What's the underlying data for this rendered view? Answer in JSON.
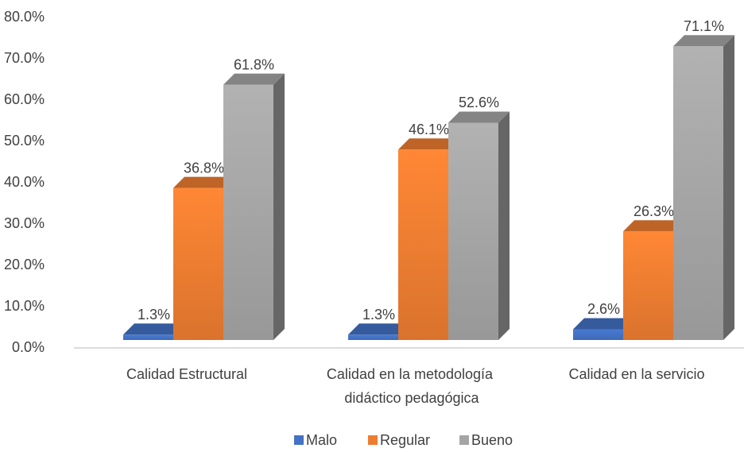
{
  "chart_data": {
    "type": "bar3d",
    "categories": [
      "Calidad Estructural",
      "Calidad en la metodología didáctico pedagógica",
      "Calidad en la servicio"
    ],
    "series": [
      {
        "name": "Malo",
        "color": "#4472c4",
        "values": [
          1.3,
          1.3,
          2.6
        ],
        "value_labels": [
          "1.3%",
          "1.3%",
          "2.6%"
        ]
      },
      {
        "name": "Regular",
        "color": "#ed7d31",
        "values": [
          36.8,
          46.1,
          26.3
        ],
        "value_labels": [
          "36.8%",
          "46.1%",
          "26.3%"
        ]
      },
      {
        "name": "Bueno",
        "color": "#a5a5a5",
        "values": [
          61.8,
          52.6,
          71.1
        ],
        "value_labels": [
          "61.8%",
          "52.6%",
          "71.1%"
        ]
      }
    ],
    "ylim": [
      0,
      80
    ],
    "yticks": [
      {
        "value": 0,
        "label": "0.0%"
      },
      {
        "value": 10,
        "label": "10.0%"
      },
      {
        "value": 20,
        "label": "20.0%"
      },
      {
        "value": 30,
        "label": "30.0%"
      },
      {
        "value": 40,
        "label": "40.0%"
      },
      {
        "value": 50,
        "label": "50.0%"
      },
      {
        "value": 60,
        "label": "60.0%"
      },
      {
        "value": 70,
        "label": "70.0%"
      },
      {
        "value": 80,
        "label": "80.0%"
      }
    ],
    "legend": "bottom"
  }
}
